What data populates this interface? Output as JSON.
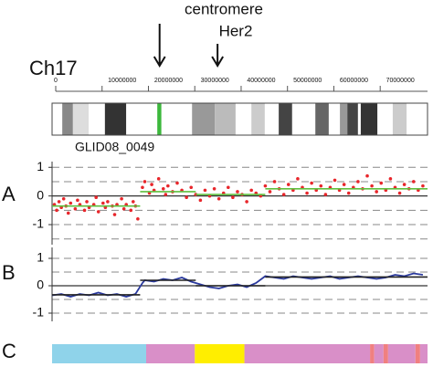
{
  "chart_data": {
    "type": "genome",
    "chromosome": "Ch17",
    "sample": "GLID08_0049",
    "annotations": [
      {
        "text": "centromere",
        "x": 23.2
      },
      {
        "text": "Her2",
        "x": 35.7
      }
    ],
    "xlim": [
      0,
      81
    ],
    "xticks": [
      0,
      {
        "value": 10,
        "label": "10000000"
      },
      {
        "value": 20,
        "label": "20000000"
      },
      {
        "value": 30,
        "label": "30000000"
      },
      {
        "value": 40,
        "label": "40000000"
      },
      {
        "value": 50,
        "label": "50000000"
      },
      {
        "value": 60,
        "label": "60000000"
      },
      {
        "value": 70,
        "label": "70000000"
      }
    ],
    "ideogram": [
      {
        "start": 0,
        "end": 2.2,
        "color": "#ffffff"
      },
      {
        "start": 2.2,
        "end": 4.5,
        "color": "#888888"
      },
      {
        "start": 4.5,
        "end": 7.9,
        "color": "#dddddd"
      },
      {
        "start": 7.9,
        "end": 11.4,
        "color": "#ffffff"
      },
      {
        "start": 11.4,
        "end": 16,
        "color": "#333333"
      },
      {
        "start": 16,
        "end": 22.7,
        "color": "#ffffff"
      },
      {
        "start": 22.7,
        "end": 23.6,
        "color": "#3cb83c"
      },
      {
        "start": 23.6,
        "end": 30.2,
        "color": "#ffffff"
      },
      {
        "start": 30.2,
        "end": 35.1,
        "color": "#999999"
      },
      {
        "start": 35.1,
        "end": 39.6,
        "color": "#bbbbbb"
      },
      {
        "start": 39.6,
        "end": 43,
        "color": "#ffffff"
      },
      {
        "start": 43,
        "end": 45.9,
        "color": "#cccccc"
      },
      {
        "start": 45.9,
        "end": 48.9,
        "color": "#ffffff"
      },
      {
        "start": 48.9,
        "end": 51.8,
        "color": "#444444"
      },
      {
        "start": 51.8,
        "end": 56.8,
        "color": "#ffffff"
      },
      {
        "start": 56.8,
        "end": 59.7,
        "color": "#666666"
      },
      {
        "start": 59.7,
        "end": 62.1,
        "color": "#ffffff"
      },
      {
        "start": 62.1,
        "end": 63.7,
        "color": "#999999"
      },
      {
        "start": 63.7,
        "end": 66,
        "color": "#444444"
      },
      {
        "start": 66,
        "end": 66.6,
        "color": "#ffffff"
      },
      {
        "start": 66.6,
        "end": 70.2,
        "color": "#333333"
      },
      {
        "start": 70.2,
        "end": 73.5,
        "color": "#ffffff"
      },
      {
        "start": 73.5,
        "end": 76.5,
        "color": "#cccccc"
      },
      {
        "start": 76.5,
        "end": 81,
        "color": "#ffffff"
      }
    ],
    "panels": [
      {
        "label": "A",
        "ylim": [
          -1.7,
          1.2
        ],
        "yticks": [
          1,
          0,
          -1
        ],
        "dashed": [
          1,
          0.5,
          -0.5,
          -1,
          -1.5
        ],
        "color": "#e8262b",
        "segment_color": "#5fbf3f",
        "x": [
          0.5,
          1,
          1.5,
          2,
          2.5,
          3,
          3.5,
          4,
          5,
          5.5,
          6,
          7,
          7.5,
          8,
          9,
          9.5,
          10,
          11,
          11.5,
          12,
          13,
          13.5,
          14,
          15,
          15.5,
          16,
          17,
          17.5,
          18,
          18.5,
          19.5,
          20,
          21,
          21.5,
          22,
          23,
          24,
          24.5,
          25,
          26,
          27,
          28,
          29,
          30,
          31,
          32,
          33,
          34,
          35,
          36,
          37,
          38,
          39,
          40,
          41,
          42,
          43,
          44,
          45,
          46,
          47,
          48,
          49,
          50,
          51,
          52,
          53,
          54,
          55,
          56,
          57,
          58,
          59,
          60,
          61,
          62,
          63,
          64,
          65,
          66,
          67,
          68,
          69,
          70,
          71,
          72,
          73,
          74,
          75,
          76,
          77,
          78,
          79,
          80
        ],
        "y": [
          -0.3,
          -0.5,
          -0.2,
          -0.4,
          -0.1,
          -0.35,
          -0.6,
          -0.25,
          -0.45,
          -0.15,
          -0.3,
          -0.5,
          -0.2,
          -0.4,
          -0.3,
          -0.05,
          -0.55,
          -0.25,
          -0.4,
          -0.2,
          -0.35,
          -0.65,
          -0.3,
          -0.1,
          -0.45,
          -0.3,
          -0.5,
          -0.2,
          -0.35,
          -0.8,
          0.3,
          0.5,
          0.1,
          0.4,
          0.2,
          0.6,
          0.25,
          0.05,
          0.35,
          0.15,
          0.45,
          0.2,
          -0.05,
          0.3,
          0.05,
          -0.15,
          0.2,
          0,
          0.25,
          -0.1,
          0.1,
          0.3,
          -0.05,
          0.15,
          0.05,
          -0.2,
          0.2,
          0.1,
          0,
          0.35,
          0.15,
          0.5,
          0.25,
          0.05,
          0.4,
          0.2,
          0.6,
          0.3,
          0.1,
          0.45,
          0.2,
          0.35,
          0.05,
          0.3,
          0.55,
          0.2,
          0.4,
          0.1,
          0.3,
          0.5,
          0.25,
          0.7,
          0.35,
          0.15,
          0.45,
          0.2,
          0.6,
          0.3,
          0.1,
          0.4,
          0.25,
          0.5,
          0.2,
          0.35
        ],
        "segments": [
          {
            "start": 0,
            "end": 19,
            "value": -0.35
          },
          {
            "start": 19,
            "end": 31,
            "value": 0.15
          },
          {
            "start": 31,
            "end": 46,
            "value": 0.05
          },
          {
            "start": 46,
            "end": 81,
            "value": 0.25
          }
        ]
      },
      {
        "label": "B",
        "ylim": [
          -1.3,
          1.4
        ],
        "yticks": [
          1,
          0,
          -1
        ],
        "dashed": [
          1,
          0.5,
          -0.5,
          -1
        ],
        "color": "#2b3a9e",
        "segment_color": "#222222",
        "x": [
          0,
          2,
          4,
          6,
          8,
          10,
          12,
          14,
          16,
          18,
          19.5,
          20,
          22,
          24,
          26,
          28,
          30,
          32,
          34,
          36,
          38,
          40,
          42,
          44,
          46,
          48,
          50,
          52,
          54,
          56,
          58,
          60,
          62,
          64,
          66,
          68,
          70,
          72,
          74,
          76,
          78,
          80
        ],
        "y": [
          -0.35,
          -0.3,
          -0.4,
          -0.3,
          -0.35,
          -0.25,
          -0.35,
          -0.3,
          -0.4,
          -0.3,
          0.1,
          0.2,
          0.15,
          0.25,
          0.2,
          0.3,
          0.15,
          0.05,
          -0.05,
          -0.1,
          0,
          0.05,
          -0.05,
          0.1,
          0.35,
          0.3,
          0.25,
          0.35,
          0.3,
          0.25,
          0.3,
          0.35,
          0.25,
          0.3,
          0.35,
          0.3,
          0.25,
          0.3,
          0.4,
          0.35,
          0.45,
          0.4
        ],
        "segments": [
          {
            "start": 0,
            "end": 19,
            "value": -0.33
          },
          {
            "start": 19,
            "end": 31,
            "value": 0.2
          },
          {
            "start": 31,
            "end": 46,
            "value": 0
          },
          {
            "start": 46,
            "end": 81,
            "value": 0.32
          }
        ]
      },
      {
        "label": "C",
        "blocks": [
          {
            "start": 0,
            "end": 20.3,
            "color": "#8fd3ea"
          },
          {
            "start": 20.3,
            "end": 30.8,
            "color": "#d98fc8"
          },
          {
            "start": 30.8,
            "end": 41.5,
            "color": "#ffee00"
          },
          {
            "start": 41.5,
            "end": 68.6,
            "color": "#d98fc8"
          },
          {
            "start": 68.6,
            "end": 69.5,
            "color": "#f08080"
          },
          {
            "start": 69.5,
            "end": 71.5,
            "color": "#d98fc8"
          },
          {
            "start": 71.5,
            "end": 72.5,
            "color": "#f08080"
          },
          {
            "start": 72.5,
            "end": 78.4,
            "color": "#d98fc8"
          },
          {
            "start": 78.4,
            "end": 79.4,
            "color": "#f08080"
          },
          {
            "start": 79.4,
            "end": 81,
            "color": "#d98fc8"
          }
        ]
      }
    ]
  }
}
